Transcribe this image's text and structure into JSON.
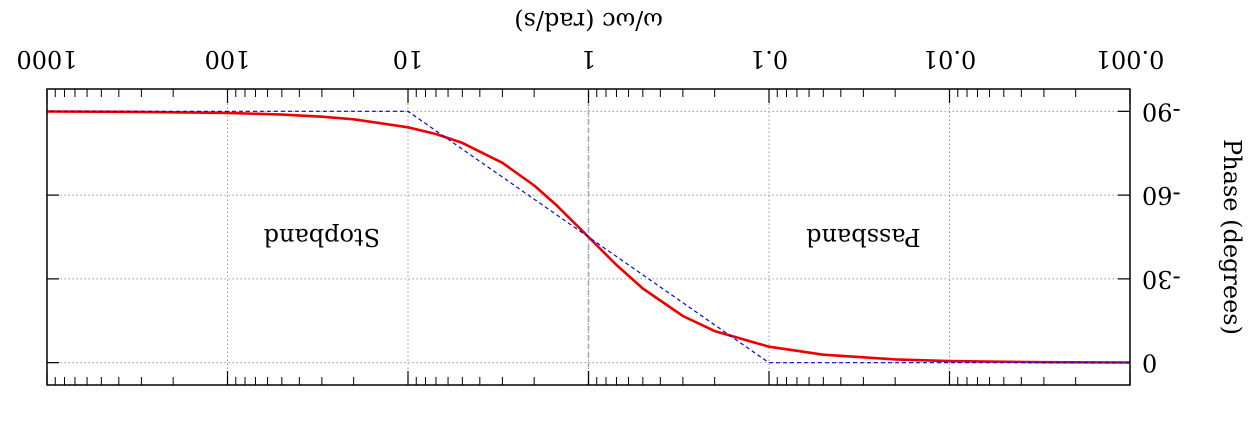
{
  "chart_data": {
    "type": "line",
    "title": "",
    "xlabel": "ω/ωc (rad/s)",
    "ylabel": "Phase (degrees)",
    "x_scale": "log",
    "xlim": [
      0.001,
      1000
    ],
    "ylim": [
      -98,
      8
    ],
    "x_ticks": [
      0.001,
      0.01,
      0.1,
      1,
      10,
      100,
      1000
    ],
    "x_tick_labels": [
      "0.001",
      "0.01",
      "0.1",
      "1",
      "10",
      "100",
      "1000"
    ],
    "y_ticks": [
      0,
      -30,
      -60,
      -90
    ],
    "y_tick_labels": [
      "0",
      "-30",
      "-60",
      "-90"
    ],
    "grid": true,
    "annotations": [
      {
        "text": "Passband",
        "x": 0.03,
        "y": -45
      },
      {
        "text": "Stopband",
        "x": 30,
        "y": -45
      }
    ],
    "vertical_line": {
      "x": 1,
      "style": "dashed",
      "color": "#aaaaaa"
    },
    "series": [
      {
        "style": "solid",
        "color": "#ee0000",
        "x": [
          0.001,
          0.003,
          0.01,
          0.02,
          0.05,
          0.1,
          0.2,
          0.3,
          0.5,
          0.7,
          1,
          1.5,
          2,
          3,
          5,
          7,
          10,
          20,
          30,
          50,
          100,
          300,
          1000
        ],
        "y": [
          -0.06,
          -0.17,
          -0.57,
          -1.15,
          -2.86,
          -5.71,
          -11.31,
          -16.7,
          -26.57,
          -34.99,
          -45,
          -56.31,
          -63.43,
          -71.57,
          -78.69,
          -81.87,
          -84.29,
          -87.14,
          -88.09,
          -88.85,
          -89.43,
          -89.81,
          -89.94
        ]
      },
      {
        "style": "dashed",
        "color": "#0000ee",
        "x": [
          0.001,
          0.1,
          10,
          1000
        ],
        "y": [
          0,
          0,
          -90,
          -90
        ]
      }
    ]
  }
}
